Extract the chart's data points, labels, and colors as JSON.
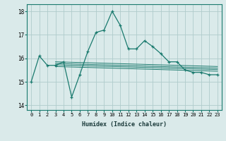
{
  "title": "",
  "xlabel": "Humidex (Indice chaleur)",
  "bg_color": "#daeaea",
  "grid_color": "#b0cccc",
  "line_color": "#1a7a6e",
  "xlim": [
    -0.5,
    23.5
  ],
  "ylim": [
    13.8,
    18.3
  ],
  "yticks": [
    14,
    15,
    16,
    17,
    18
  ],
  "xticks": [
    0,
    1,
    2,
    3,
    4,
    5,
    6,
    7,
    8,
    9,
    10,
    11,
    12,
    13,
    14,
    15,
    16,
    17,
    18,
    19,
    20,
    21,
    22,
    23
  ],
  "main_line_x": [
    0,
    1,
    2,
    3,
    4,
    5,
    6,
    7,
    8,
    9,
    10,
    11,
    12,
    13,
    14,
    15,
    16,
    17,
    18,
    19,
    20,
    21,
    22,
    23
  ],
  "main_line_y": [
    15.0,
    16.1,
    15.7,
    15.7,
    15.85,
    14.35,
    15.3,
    16.3,
    17.1,
    17.2,
    18.0,
    17.4,
    16.4,
    16.4,
    16.75,
    16.5,
    16.2,
    15.85,
    15.85,
    15.5,
    15.4,
    15.4,
    15.3,
    15.3
  ],
  "flat_line1_x": [
    3,
    23
  ],
  "flat_line1_y": [
    15.65,
    15.45
  ],
  "flat_line2_x": [
    3,
    23
  ],
  "flat_line2_y": [
    15.72,
    15.52
  ],
  "flat_line3_x": [
    3,
    23
  ],
  "flat_line3_y": [
    15.78,
    15.58
  ],
  "flat_line4_x": [
    3,
    23
  ],
  "flat_line4_y": [
    15.85,
    15.65
  ]
}
